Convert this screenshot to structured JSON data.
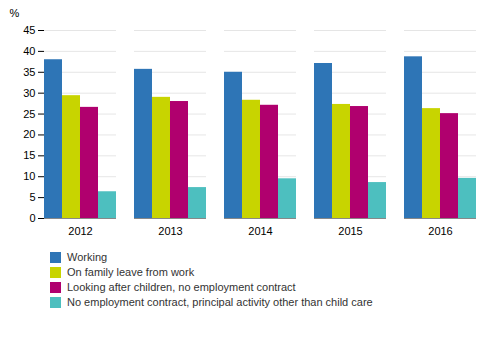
{
  "chart_data": {
    "type": "bar",
    "categories": [
      "2012",
      "2013",
      "2014",
      "2015",
      "2016"
    ],
    "series": [
      {
        "name": "Working",
        "color": "#2e75b6",
        "values": [
          38.0,
          35.7,
          35.0,
          37.1,
          38.7
        ]
      },
      {
        "name": "On family leave from work",
        "color": "#c8d400",
        "values": [
          29.4,
          29.0,
          28.3,
          27.3,
          26.3
        ]
      },
      {
        "name": "Looking after children, no employment contract",
        "color": "#b0006e",
        "values": [
          26.6,
          28.0,
          27.1,
          26.8,
          25.1
        ]
      },
      {
        "name": "No employment contract, principal activity other than child care",
        "color": "#4dbfbf",
        "values": [
          6.4,
          7.4,
          9.5,
          8.6,
          9.6
        ]
      }
    ],
    "ylabel": "%",
    "ylim": [
      0,
      45
    ],
    "yticks": [
      0,
      5,
      10,
      15,
      20,
      25,
      30,
      35,
      40,
      45
    ],
    "grid": true,
    "legend": "bottom"
  }
}
